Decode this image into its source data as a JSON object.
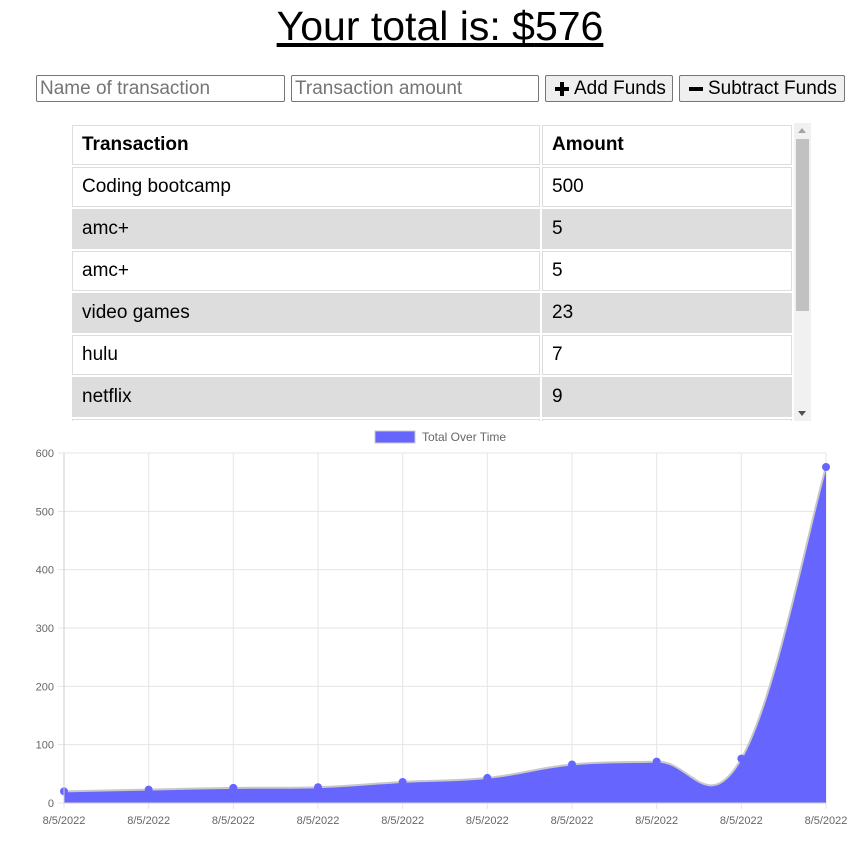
{
  "header": {
    "total_prefix": "Your total is: $",
    "total_value": "576"
  },
  "form": {
    "name_placeholder": "Name of transaction",
    "amount_placeholder": "Transaction amount",
    "add_label": "Add Funds",
    "subtract_label": "Subtract Funds"
  },
  "table": {
    "headers": [
      "Transaction",
      "Amount"
    ],
    "rows": [
      {
        "name": "Coding bootcamp",
        "amount": "500"
      },
      {
        "name": "amc+",
        "amount": "5"
      },
      {
        "name": "amc+",
        "amount": "5"
      },
      {
        "name": "video games",
        "amount": "23"
      },
      {
        "name": "hulu",
        "amount": "7"
      },
      {
        "name": "netflix",
        "amount": "9"
      },
      {
        "name": "",
        "amount": ""
      }
    ]
  },
  "chart_data": {
    "type": "area",
    "series": [
      {
        "name": "Total Over Time",
        "values": [
          20,
          23,
          26,
          27,
          36,
          43,
          66,
          71,
          76,
          576
        ]
      }
    ],
    "categories": [
      "8/5/2022",
      "8/5/2022",
      "8/5/2022",
      "8/5/2022",
      "8/5/2022",
      "8/5/2022",
      "8/5/2022",
      "8/5/2022",
      "8/5/2022",
      "8/5/2022"
    ],
    "ylim": [
      0,
      600
    ],
    "yticks": [
      0,
      100,
      200,
      300,
      400,
      500,
      600
    ],
    "grid": true,
    "legend": "top-center",
    "colors": {
      "fill": "#6666ff",
      "line": "#c8c8c8",
      "point": "#6666ff",
      "grid": "#e5e5e5",
      "tick_text": "#666666"
    }
  }
}
